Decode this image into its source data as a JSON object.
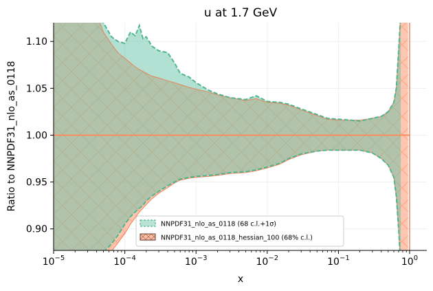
{
  "chart_data": {
    "type": "area",
    "title": "u at 1.7 GeV",
    "xlabel": "x",
    "ylabel": "Ratio to NNPDF31_nlo_as_0118",
    "xscale": "log",
    "xlim": [
      1e-05,
      1
    ],
    "ylim": [
      0.877,
      1.12
    ],
    "xticks": [
      {
        "value": 1e-05,
        "base": "10",
        "exp": "−5"
      },
      {
        "value": 0.0001,
        "base": "10",
        "exp": "−4"
      },
      {
        "value": 0.001,
        "base": "10",
        "exp": "−3"
      },
      {
        "value": 0.01,
        "base": "10",
        "exp": "−2"
      },
      {
        "value": 0.1,
        "base": "10",
        "exp": "−1"
      },
      {
        "value": 1,
        "base": "10",
        "exp": "0"
      }
    ],
    "yticks": [
      {
        "value": 0.9,
        "label": "0.90"
      },
      {
        "value": 0.95,
        "label": "0.95"
      },
      {
        "value": 1.0,
        "label": "1.00"
      },
      {
        "value": 1.05,
        "label": "1.05"
      },
      {
        "value": 1.1,
        "label": "1.10"
      }
    ],
    "grid": true,
    "legend_position": "lower-center",
    "colors": {
      "green_fill": "#66c2a5",
      "green_edge": "#4fb58f",
      "orange_fill": "#fc8d62",
      "orange_edge": "#e8825a",
      "overlap": "#d4b49a",
      "central_line": "#fc8d62"
    },
    "series": [
      {
        "name": "NNPDF31_nlo_as_0118 (68 c.l.+1σ)",
        "style": "green-dashed-edge",
        "x": [
          1e-05,
          2.5e-05,
          4e-05,
          5e-05,
          6.5e-05,
          8e-05,
          0.0001,
          0.00012,
          0.00014,
          0.00016,
          0.00018,
          0.0002,
          0.00024,
          0.0003,
          0.0004,
          0.0005,
          0.0006,
          0.0008,
          0.001,
          0.0015,
          0.002,
          0.003,
          0.005,
          0.007,
          0.01,
          0.015,
          0.02,
          0.03,
          0.05,
          0.07,
          0.1,
          0.15,
          0.2,
          0.3,
          0.4,
          0.5,
          0.6,
          0.65,
          0.7,
          0.75
        ],
        "upper": [
          1.14,
          1.14,
          1.135,
          1.12,
          1.105,
          1.1,
          1.098,
          1.11,
          1.106,
          1.117,
          1.103,
          1.105,
          1.095,
          1.09,
          1.088,
          1.077,
          1.066,
          1.062,
          1.056,
          1.048,
          1.044,
          1.04,
          1.038,
          1.042,
          1.036,
          1.035,
          1.033,
          1.028,
          1.022,
          1.018,
          1.017,
          1.016,
          1.015,
          1.018,
          1.02,
          1.025,
          1.035,
          1.05,
          1.09,
          1.13
        ],
        "lower": [
          0.85,
          0.85,
          0.86,
          0.875,
          0.884,
          0.893,
          0.905,
          0.913,
          0.918,
          0.922,
          0.925,
          0.93,
          0.935,
          0.94,
          0.946,
          0.95,
          0.953,
          0.955,
          0.956,
          0.957,
          0.958,
          0.96,
          0.961,
          0.963,
          0.966,
          0.97,
          0.975,
          0.98,
          0.983,
          0.984,
          0.984,
          0.984,
          0.984,
          0.981,
          0.975,
          0.968,
          0.955,
          0.935,
          0.9,
          0.86
        ]
      },
      {
        "name": "NNPDF31_nlo_as_0118_hessian_100 (68% c.l.)",
        "style": "orange-hatched",
        "x": [
          1e-05,
          2.5e-05,
          4e-05,
          5e-05,
          6.5e-05,
          8e-05,
          0.0001,
          0.00012,
          0.00014,
          0.00016,
          0.00018,
          0.0002,
          0.00024,
          0.0003,
          0.0004,
          0.0005,
          0.0006,
          0.0008,
          0.001,
          0.0015,
          0.002,
          0.003,
          0.005,
          0.007,
          0.01,
          0.015,
          0.02,
          0.03,
          0.05,
          0.07,
          0.1,
          0.15,
          0.2,
          0.3,
          0.4,
          0.5,
          0.6,
          0.65,
          0.7,
          0.75,
          0.8,
          0.9,
          0.95
        ],
        "upper": [
          1.14,
          1.14,
          1.13,
          1.11,
          1.097,
          1.088,
          1.082,
          1.077,
          1.073,
          1.07,
          1.068,
          1.066,
          1.063,
          1.061,
          1.058,
          1.056,
          1.054,
          1.051,
          1.049,
          1.046,
          1.043,
          1.04,
          1.037,
          1.039,
          1.035,
          1.034,
          1.032,
          1.027,
          1.021,
          1.017,
          1.016,
          1.016,
          1.016,
          1.018,
          1.02,
          1.025,
          1.035,
          1.05,
          1.09,
          1.13,
          1.14,
          1.14,
          1.14
        ],
        "lower": [
          0.85,
          0.85,
          0.855,
          0.865,
          0.876,
          0.885,
          0.895,
          0.905,
          0.912,
          0.918,
          0.922,
          0.926,
          0.932,
          0.938,
          0.944,
          0.949,
          0.952,
          0.954,
          0.955,
          0.956,
          0.957,
          0.959,
          0.96,
          0.962,
          0.965,
          0.969,
          0.974,
          0.979,
          0.983,
          0.984,
          0.984,
          0.984,
          0.984,
          0.981,
          0.975,
          0.968,
          0.955,
          0.935,
          0.9,
          0.86,
          0.85,
          0.85,
          0.85
        ]
      }
    ],
    "central_line": 1.0
  },
  "legend": [
    {
      "label": "NNPDF31_nlo_as_0118 (68 c.l.+1σ)",
      "swatch": "green-dashed"
    },
    {
      "label": "NNPDF31_nlo_as_0118_hessian_100 (68% c.l.)",
      "swatch": "orange-hatched"
    }
  ]
}
